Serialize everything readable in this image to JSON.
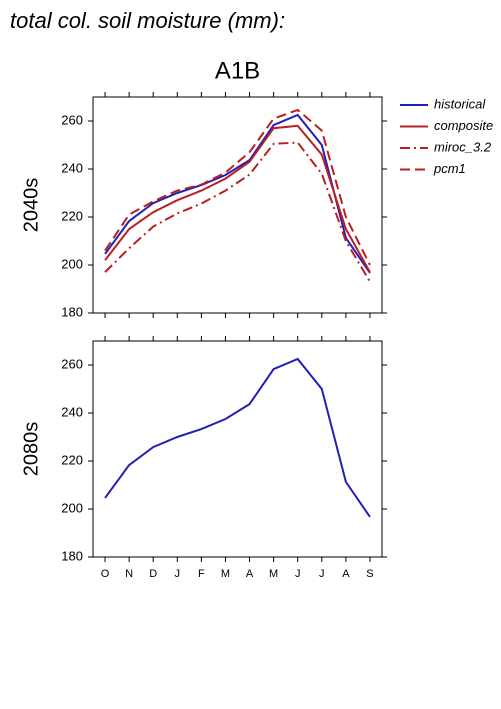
{
  "title": "total col. soil moisture (mm):",
  "chart_data": [
    {
      "type": "line",
      "title": "A1B",
      "ylabel": "2040s",
      "categories": [
        "O",
        "N",
        "D",
        "J",
        "F",
        "M",
        "A",
        "M",
        "J",
        "J",
        "A",
        "S"
      ],
      "ylim": [
        180,
        270
      ],
      "yticks": [
        180,
        200,
        220,
        240,
        260
      ],
      "legend": "right",
      "series": [
        {
          "name": "historical",
          "color": "#2020b8",
          "linestyle": "solid",
          "values": [
            204.6,
            218.3,
            225.8,
            230,
            233.3,
            237.5,
            243.7,
            258.3,
            262.5,
            250,
            211.3,
            196.7
          ]
        },
        {
          "name": "composite",
          "color": "#b82020",
          "linestyle": "solid",
          "values": [
            202,
            215,
            222,
            227,
            231,
            236,
            243,
            257,
            258,
            246,
            215,
            197
          ]
        },
        {
          "name": "miroc_3.2",
          "color": "#b82020",
          "linestyle": "dashdot",
          "values": [
            197,
            207,
            216,
            221.5,
            225.6,
            231,
            237.7,
            250.5,
            251,
            238,
            210,
            193
          ]
        },
        {
          "name": "pcm1",
          "color": "#b82020",
          "linestyle": "dashed",
          "values": [
            206,
            221,
            226.5,
            231,
            233.5,
            238.5,
            247,
            261,
            264.6,
            256,
            220,
            200
          ]
        }
      ]
    },
    {
      "type": "line",
      "ylabel": "2080s",
      "categories": [
        "O",
        "N",
        "D",
        "J",
        "F",
        "M",
        "A",
        "M",
        "J",
        "J",
        "A",
        "S"
      ],
      "ylim": [
        180,
        270
      ],
      "yticks": [
        180,
        200,
        220,
        240,
        260
      ],
      "series": [
        {
          "name": "historical",
          "color": "#2020b8",
          "linestyle": "solid",
          "values": [
            204.6,
            218.3,
            225.8,
            230,
            233.3,
            237.5,
            243.7,
            258.3,
            262.5,
            250,
            211.3,
            196.7
          ]
        }
      ]
    }
  ]
}
